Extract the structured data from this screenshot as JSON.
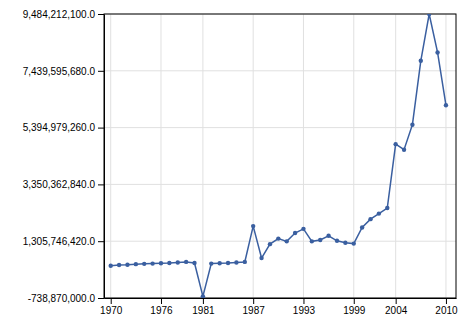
{
  "chart_data": {
    "type": "line",
    "x": [
      1970,
      1971,
      1972,
      1973,
      1974,
      1975,
      1976,
      1977,
      1978,
      1979,
      1980,
      1981,
      1982,
      1983,
      1984,
      1985,
      1986,
      1987,
      1988,
      1989,
      1990,
      1991,
      1992,
      1993,
      1994,
      1995,
      1996,
      1997,
      1998,
      1999,
      2000,
      2001,
      2002,
      2003,
      2004,
      2005,
      2006,
      2007,
      2008,
      2009,
      2010
    ],
    "values": [
      420000000,
      450000000,
      460000000,
      480000000,
      490000000,
      500000000,
      510000000,
      520000000,
      540000000,
      560000000,
      520000000,
      -680000000,
      500000000,
      510000000,
      520000000,
      540000000,
      560000000,
      1850000000,
      700000000,
      1200000000,
      1400000000,
      1300000000,
      1600000000,
      1750000000,
      1300000000,
      1350000000,
      1500000000,
      1320000000,
      1250000000,
      1220000000,
      1800000000,
      2100000000,
      2300000000,
      2500000000,
      4800000000,
      4600000000,
      5500000000,
      7800000000,
      9484212100,
      8100000000,
      6200000000
    ],
    "color": "#3a5fa0",
    "marker": "circle",
    "xlim": [
      1969.2,
      2011.2
    ],
    "xticks": [
      1970,
      1976,
      1981,
      1987,
      1993,
      1999,
      2004,
      2010
    ],
    "ylim": [
      -738870000.0,
      9484212100.0
    ],
    "yticks": [
      {
        "value": -738870000.0,
        "label": "-738,870,000.0"
      },
      {
        "value": 1305746420.0,
        "label": "1,305,746,420.0"
      },
      {
        "value": 3350362840.0,
        "label": "3,350,362,840.0"
      },
      {
        "value": 5394979260.0,
        "label": "5,394,979,260.0"
      },
      {
        "value": 7439595680.0,
        "label": "7,439,595,680.0"
      },
      {
        "value": 9484212100.0,
        "label": "9,484,212,100.0"
      }
    ],
    "grid": true
  }
}
